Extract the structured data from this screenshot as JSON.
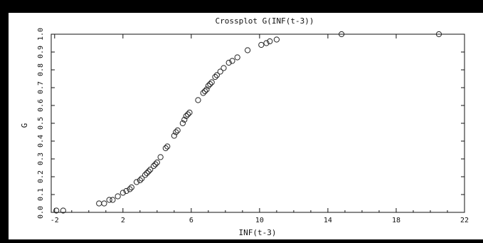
{
  "chart_data": {
    "type": "scatter",
    "title": "Crossplot  G(INF(t-3))",
    "xlabel": "INF(t-3)",
    "ylabel": "G",
    "xlim": [
      -2.2,
      22
    ],
    "ylim": [
      0,
      1
    ],
    "xticks": [
      "-2",
      "2",
      "6",
      "10",
      "14",
      "18",
      "22"
    ],
    "xtick_values": [
      -2,
      2,
      6,
      10,
      14,
      18,
      22
    ],
    "yticks": [
      "0.0",
      "0.1",
      "0.2",
      "0.3",
      "0.4",
      "0.5",
      "0.6",
      "0.7",
      "0.8",
      "0.9",
      "1.0"
    ],
    "ytick_values": [
      0,
      0.1,
      0.2,
      0.3,
      0.4,
      0.5,
      0.6,
      0.7,
      0.8,
      0.9,
      1.0
    ],
    "marker": "open-circle",
    "color": "#222222",
    "grid": false,
    "points": [
      [
        -1.9,
        0.01
      ],
      [
        -1.5,
        0.01
      ],
      [
        0.6,
        0.05
      ],
      [
        0.9,
        0.05
      ],
      [
        1.2,
        0.07
      ],
      [
        1.4,
        0.07
      ],
      [
        1.7,
        0.09
      ],
      [
        2.0,
        0.11
      ],
      [
        2.2,
        0.12
      ],
      [
        2.4,
        0.13
      ],
      [
        2.5,
        0.14
      ],
      [
        2.8,
        0.17
      ],
      [
        3.0,
        0.18
      ],
      [
        3.1,
        0.19
      ],
      [
        3.3,
        0.21
      ],
      [
        3.4,
        0.22
      ],
      [
        3.5,
        0.23
      ],
      [
        3.6,
        0.24
      ],
      [
        3.8,
        0.26
      ],
      [
        3.9,
        0.27
      ],
      [
        4.0,
        0.28
      ],
      [
        4.2,
        0.31
      ],
      [
        4.5,
        0.36
      ],
      [
        4.6,
        0.37
      ],
      [
        5.0,
        0.43
      ],
      [
        5.1,
        0.45
      ],
      [
        5.2,
        0.46
      ],
      [
        5.5,
        0.5
      ],
      [
        5.6,
        0.52
      ],
      [
        5.7,
        0.54
      ],
      [
        5.8,
        0.55
      ],
      [
        5.9,
        0.56
      ],
      [
        6.4,
        0.63
      ],
      [
        6.7,
        0.67
      ],
      [
        6.8,
        0.68
      ],
      [
        6.9,
        0.69
      ],
      [
        7.0,
        0.71
      ],
      [
        7.1,
        0.72
      ],
      [
        7.2,
        0.73
      ],
      [
        7.4,
        0.76
      ],
      [
        7.5,
        0.77
      ],
      [
        7.7,
        0.79
      ],
      [
        7.9,
        0.81
      ],
      [
        8.2,
        0.84
      ],
      [
        8.4,
        0.85
      ],
      [
        8.7,
        0.87
      ],
      [
        9.3,
        0.91
      ],
      [
        10.1,
        0.94
      ],
      [
        10.4,
        0.95
      ],
      [
        10.6,
        0.96
      ],
      [
        11.0,
        0.97
      ],
      [
        14.8,
        1.0
      ],
      [
        20.5,
        1.0
      ]
    ]
  }
}
